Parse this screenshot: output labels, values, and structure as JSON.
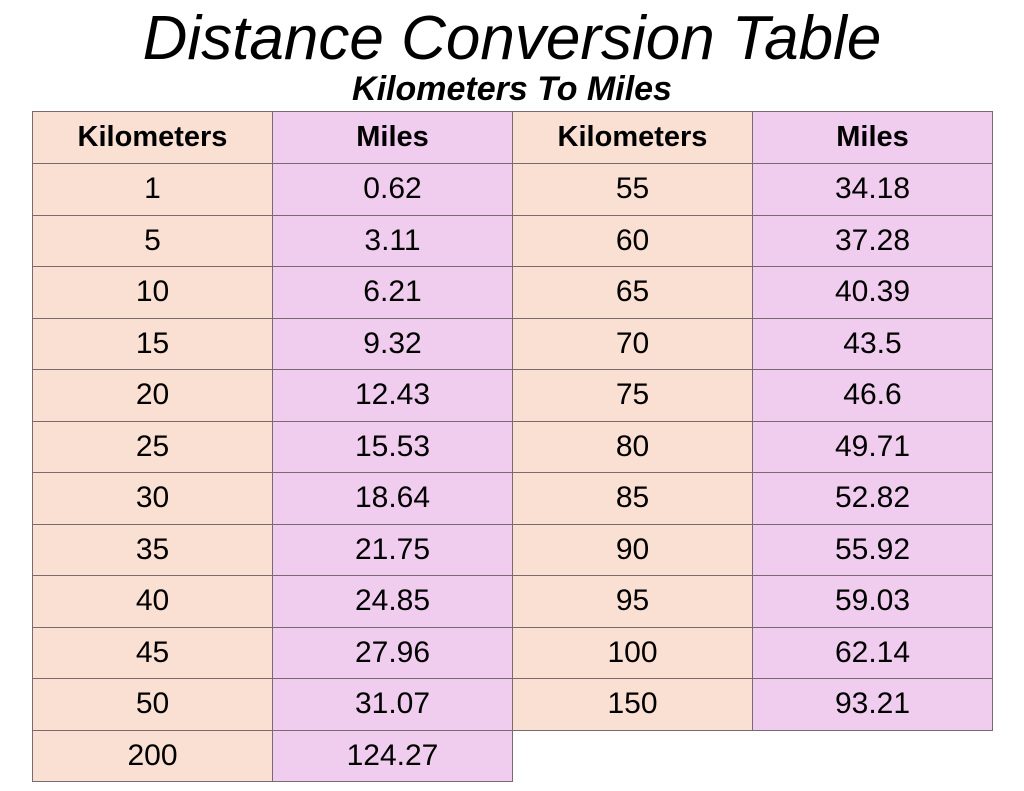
{
  "title": "Distance Conversion Table",
  "subtitle": "Kilometers To Miles",
  "table": {
    "header": [
      "Kilometers",
      "Miles",
      "Kilometers",
      "Miles"
    ],
    "rows": [
      [
        "1",
        "0.62",
        "55",
        "34.18"
      ],
      [
        "5",
        "3.11",
        "60",
        "37.28"
      ],
      [
        "10",
        "6.21",
        "65",
        "40.39"
      ],
      [
        "15",
        "9.32",
        "70",
        "43.5"
      ],
      [
        "20",
        "12.43",
        "75",
        "46.6"
      ],
      [
        "25",
        "15.53",
        "80",
        "49.71"
      ],
      [
        "30",
        "18.64",
        "85",
        "52.82"
      ],
      [
        "35",
        "21.75",
        "90",
        "55.92"
      ],
      [
        "40",
        "24.85",
        "95",
        "59.03"
      ],
      [
        "45",
        "27.96",
        "100",
        "62.14"
      ],
      [
        "50",
        "31.07",
        "150",
        "93.21"
      ],
      [
        "200",
        "124.27"
      ]
    ]
  }
}
